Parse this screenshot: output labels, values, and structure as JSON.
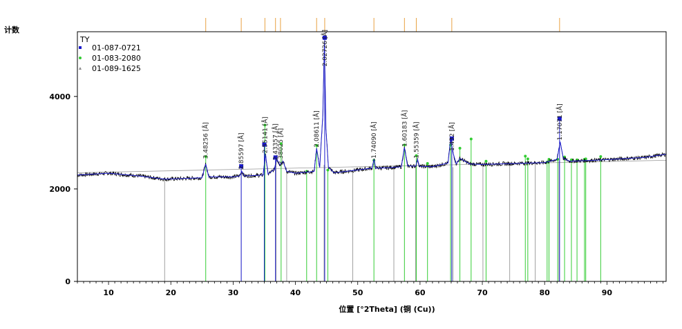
{
  "chart_data": {
    "type": "line",
    "ylabel": "计数",
    "xlabel": "位置 [°2Theta] (铜 (Cu))",
    "xlim": [
      5,
      99.5
    ],
    "ylim": [
      0,
      5400
    ],
    "x_ticks": [
      10,
      20,
      30,
      40,
      50,
      60,
      70,
      80,
      90
    ],
    "y_ticks": [
      0,
      2000,
      4000
    ],
    "legend": {
      "position": "top-left",
      "title": "TY",
      "entries": [
        {
          "label": "01-087-0721",
          "color": "#1a1acc",
          "marker": "square"
        },
        {
          "label": "01-083-2080",
          "color": "#33cc33",
          "marker": "circle"
        },
        {
          "label": "01-089-1625",
          "color": "#888888",
          "marker": "triangle"
        }
      ]
    },
    "colors": {
      "pattern": "#000000",
      "baseline": "#999999",
      "top_markers": "#e8a040",
      "profile": "#1a1acc",
      "green_refs": "#33cc33",
      "gray_refs": "#888888",
      "blue_refs": "#1a1acc"
    },
    "series": [
      {
        "name": "TY",
        "x": [
          5,
          10,
          15,
          19,
          25,
          25.6,
          26.1,
          30,
          31,
          31.4,
          31.8,
          34.8,
          35.2,
          35.6,
          36.6,
          37,
          37.5,
          38,
          38.6,
          40,
          43,
          43.4,
          43.9,
          44.4,
          44.65,
          44.9,
          45.3,
          46.2,
          50,
          52.3,
          52.6,
          52.9,
          55,
          57,
          57.5,
          58,
          59.3,
          59.6,
          59.9,
          62,
          64.5,
          64.9,
          65.3,
          65.8,
          66.4,
          68,
          70,
          75,
          80,
          82,
          82.5,
          83,
          84,
          88,
          92,
          96,
          99.5
        ],
        "y": [
          2300,
          2340,
          2280,
          2210,
          2240,
          2540,
          2260,
          2260,
          2280,
          2380,
          2280,
          2300,
          2750,
          2320,
          2420,
          2650,
          2520,
          2600,
          2380,
          2340,
          2380,
          2880,
          2460,
          3600,
          5150,
          3300,
          2470,
          2350,
          2410,
          2450,
          2640,
          2450,
          2460,
          2480,
          2900,
          2500,
          2490,
          2640,
          2490,
          2480,
          2560,
          3080,
          2780,
          2540,
          2660,
          2540,
          2530,
          2550,
          2570,
          2640,
          3020,
          2660,
          2600,
          2620,
          2650,
          2680,
          2750
        ]
      },
      {
        "name": "01-087-0721",
        "positions": [
          31.3,
          35.0,
          36.8,
          44.7,
          65.1,
          82.4
        ],
        "heights": [
          2490,
          2960,
          2680,
          5270,
          3090,
          3520
        ]
      },
      {
        "name": "01-083-2080",
        "positions": [
          25.6,
          35.1,
          37.7,
          41.8,
          43.4,
          45.2,
          52.6,
          57.5,
          59.4,
          61.2,
          64.9,
          66.4,
          68.2,
          70.6,
          76.9,
          77.3,
          80.4,
          80.7,
          82.1,
          83.2,
          84.3,
          85.2,
          86.4,
          86.6,
          89.0
        ],
        "heights": [
          2700,
          3380,
          2980,
          2380,
          2940,
          2410,
          2620,
          2950,
          2720,
          2550,
          2950,
          2880,
          3080,
          2600,
          2710,
          2650,
          2580,
          2640,
          2640,
          2690,
          2630,
          2630,
          2640,
          2650,
          2700
        ]
      },
      {
        "name": "01-089-1625",
        "positions": [
          19.0,
          31.3,
          36.9,
          38.6,
          44.6,
          49.2,
          55.8,
          59.3,
          65.3,
          70.1,
          74.4,
          78.5,
          82.3
        ],
        "heights": [
          2260,
          2300,
          2670,
          2380,
          2520,
          2380,
          2460,
          2460,
          2470,
          2500,
          2540,
          2570,
          2600
        ]
      }
    ],
    "top_marker_positions": [
      25.6,
      31.3,
      35.1,
      36.8,
      37.6,
      43.4,
      44.7,
      52.6,
      57.5,
      59.4,
      65.1,
      82.4
    ],
    "annotations": [
      {
        "x": 25.6,
        "y": 2650,
        "text": "3.48256 [Å]"
      },
      {
        "x": 31.3,
        "y": 2420,
        "text": "2.85597 [Å]"
      },
      {
        "x": 35.1,
        "y": 2770,
        "text": "2.55141 [Å]"
      },
      {
        "x": 36.8,
        "y": 2620,
        "text": "2.43357 [Å]"
      },
      {
        "x": 37.6,
        "y": 2520,
        "text": "2.38025 [Å]"
      },
      {
        "x": 43.4,
        "y": 2900,
        "text": "2.08611 [Å]"
      },
      {
        "x": 44.7,
        "y": 4650,
        "text": "2.02726 [Å]"
      },
      {
        "x": 52.6,
        "y": 2660,
        "text": "1.74090 [Å]"
      },
      {
        "x": 57.5,
        "y": 2910,
        "text": "1.60183 [Å]"
      },
      {
        "x": 59.4,
        "y": 2660,
        "text": "1.55359 [Å]"
      },
      {
        "x": 65.1,
        "y": 2820,
        "text": "1.432 [Å]"
      },
      {
        "x": 82.4,
        "y": 3050,
        "text": "1.17071 [Å]"
      }
    ]
  }
}
